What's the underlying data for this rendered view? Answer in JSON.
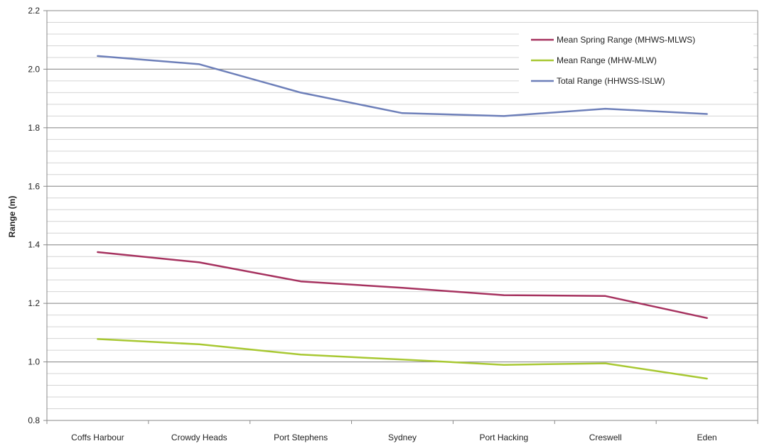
{
  "chart_data": {
    "type": "line",
    "categories": [
      "Coffs Harbour",
      "Crowdy Heads",
      "Port Stephens",
      "Sydney",
      "Port Hacking",
      "Creswell",
      "Eden"
    ],
    "series": [
      {
        "name": "Mean Spring Range (MHWS-MLWS)",
        "color": "#a6325f",
        "values": [
          1.375,
          1.34,
          1.275,
          1.253,
          1.228,
          1.225,
          1.15
        ]
      },
      {
        "name": "Mean Range (MHW-MLW)",
        "color": "#a8c832",
        "values": [
          1.078,
          1.06,
          1.025,
          1.008,
          0.99,
          0.995,
          0.943
        ]
      },
      {
        "name": "Total Range (HHWSS-ISLW)",
        "color": "#6d7fb9",
        "values": [
          2.045,
          2.017,
          1.92,
          1.85,
          1.84,
          1.865,
          1.847
        ]
      }
    ],
    "title": "",
    "xlabel": "",
    "ylabel": "Range (m)",
    "ylim": [
      0.8,
      2.2
    ],
    "yticks": [
      "0.8",
      "1.0",
      "1.2",
      "1.4",
      "1.6",
      "1.8",
      "2.0",
      "2.2"
    ],
    "ytick_values": [
      0.8,
      1.0,
      1.2,
      1.4,
      1.6,
      1.8,
      2.0,
      2.2
    ],
    "grid": true,
    "legend_position": "top-right"
  }
}
